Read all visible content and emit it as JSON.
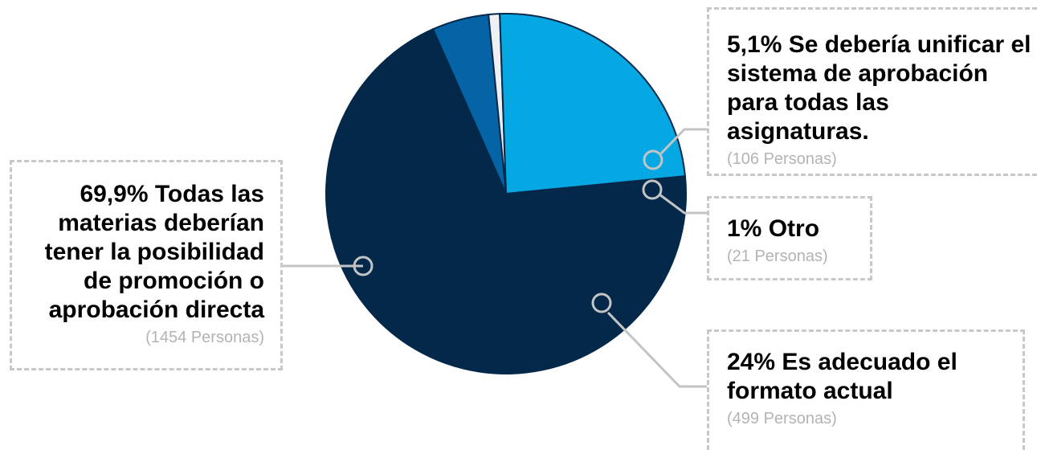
{
  "chart_data": {
    "type": "pie",
    "slices": [
      {
        "label": "Todas las materias deberían tener la posibilidad de promoción o aprobación directa",
        "percent": "69,9%",
        "value": 69.9,
        "count": "(1454 Personas)",
        "color": "#03284a"
      },
      {
        "label": "Se debería unificar el sistema de aprobación para todas las asignaturas.",
        "percent": "5,1%",
        "value": 5.1,
        "count": "(106 Personas)",
        "color": "#0464a6"
      },
      {
        "label": "Otro",
        "percent": "1%",
        "value": 1.0,
        "count": "(21 Personas)",
        "color": "#eef0f3"
      },
      {
        "label": "Es adecuado el formato actual",
        "percent": "24%",
        "value": 24.0,
        "count": "(499 Personas)",
        "color": "#05a8e2"
      }
    ]
  },
  "labels": {
    "main": {
      "title": "69,9% Todas las materias deberían tener la posibilidad de promoción o aprobación directa",
      "count": "(1454 Personas)"
    },
    "unify": {
      "title": "5,1% Se debería unificar el sistema de aprobación para todas las asignaturas.",
      "count": "(106 Personas)"
    },
    "otro": {
      "title": "1% Otro",
      "count": "(21 Personas)"
    },
    "adecuado": {
      "title": "24% Es adecuado el formato actual",
      "count": "(499 Personas)"
    }
  }
}
